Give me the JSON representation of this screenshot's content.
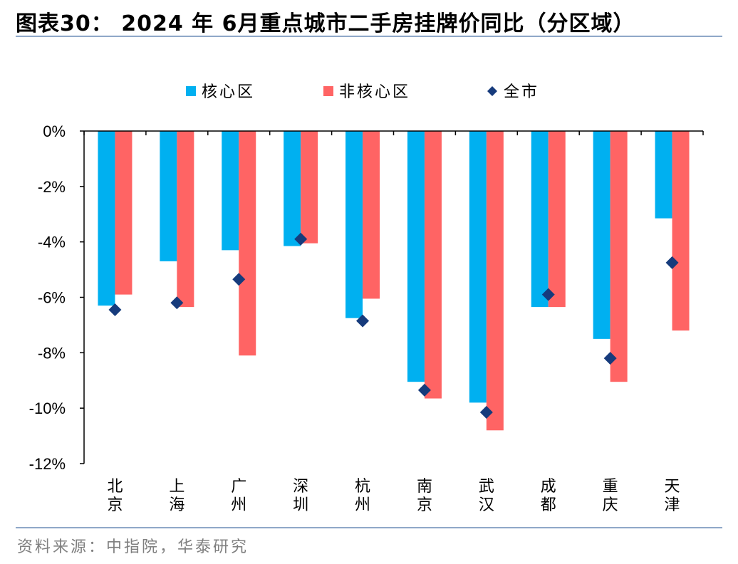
{
  "header": {
    "title": "图表30： 2024 年 6月重点城市二手房挂牌价同比（分区域）"
  },
  "footer": {
    "source": "资料来源：中指院，华泰研究"
  },
  "chart_data": {
    "type": "bar",
    "categories": [
      "北京",
      "上海",
      "广州",
      "深圳",
      "杭州",
      "南京",
      "武汉",
      "成都",
      "重庆",
      "天津"
    ],
    "series": [
      {
        "name": "核心区",
        "kind": "bar",
        "color": "#00B0F0",
        "values": [
          -6.3,
          -4.7,
          -4.3,
          -4.15,
          -6.75,
          -9.05,
          -9.8,
          -6.35,
          -7.5,
          -3.15
        ]
      },
      {
        "name": "非核心区",
        "kind": "bar",
        "color": "#FF6464",
        "values": [
          -5.9,
          -6.35,
          -8.1,
          -4.05,
          -6.05,
          -9.65,
          -10.8,
          -6.35,
          -9.05,
          -7.2
        ]
      },
      {
        "name": "全市",
        "kind": "scatter",
        "marker": "diamond",
        "color": "#163B7C",
        "values": [
          -6.45,
          -6.2,
          -5.35,
          -3.9,
          -6.85,
          -9.35,
          -10.15,
          -5.9,
          -8.2,
          -4.75
        ]
      }
    ],
    "ylim": [
      -12,
      0
    ],
    "yticks": [
      0,
      -2,
      -4,
      -6,
      -8,
      -10,
      -12
    ],
    "ytick_labels": [
      "0%",
      "-2%",
      "-4%",
      "-6%",
      "-8%",
      "-10%",
      "-12%"
    ],
    "legend": "top-center"
  }
}
